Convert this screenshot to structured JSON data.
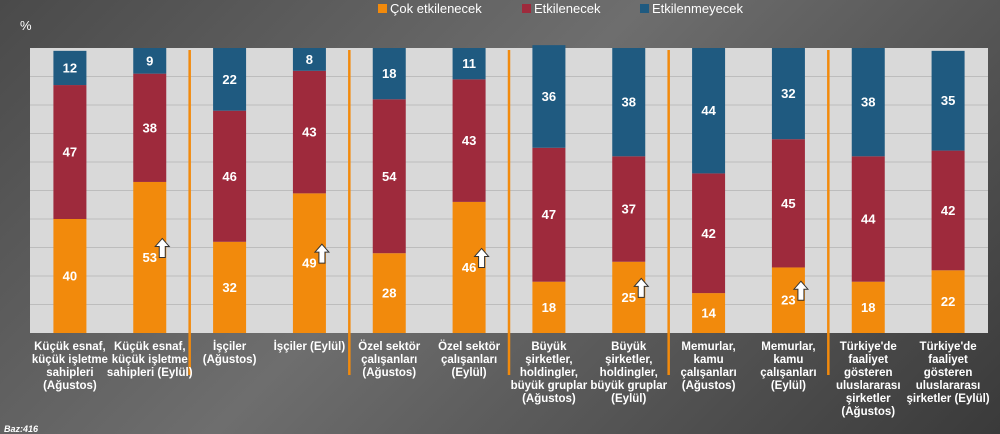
{
  "chart_data": {
    "type": "bar",
    "stacked": true,
    "unit_label": "%",
    "ylim": [
      0,
      100
    ],
    "grid": true,
    "legend_position": "top",
    "footnote": "Baz:416",
    "categories": [
      [
        "Küçük esnaf,",
        "küçük işletme",
        "sahipleri",
        "(Ağustos)"
      ],
      [
        "Küçük esnaf,",
        "küçük işletme",
        "sahipleri (Eylül)"
      ],
      [
        "İşçiler",
        "(Ağustos)"
      ],
      [
        "İşçiler (Eylül)"
      ],
      [
        "Özel sektör",
        "çalışanları",
        "(Ağustos)"
      ],
      [
        "Özel sektör",
        "çalışanları",
        "(Eylül)"
      ],
      [
        "Büyük",
        "şirketler,",
        "holdingler,",
        "büyük gruplar",
        "(Ağustos)"
      ],
      [
        "Büyük",
        "şirketler,",
        "holdingler,",
        "büyük gruplar",
        "(Eylül)"
      ],
      [
        "Memurlar,",
        "kamu",
        "çalışanları",
        "(Ağustos)"
      ],
      [
        "Memurlar,",
        "kamu",
        "çalışanları",
        "(Eylül)"
      ],
      [
        "Türkiye'de",
        "faaliyet",
        "gösteren",
        "uluslararası",
        "şirketler",
        "(Ağustos)"
      ],
      [
        "Türkiye'de",
        "faaliyet",
        "gösteren",
        "uluslararası",
        "şirketler (Eylül)"
      ]
    ],
    "series": [
      {
        "name": "Çok etkilenecek",
        "color": "#F28A0C",
        "values": [
          40,
          53,
          32,
          49,
          28,
          46,
          18,
          25,
          14,
          23,
          18,
          22
        ]
      },
      {
        "name": "Etkilenecek",
        "color": "#9E2A3C",
        "values": [
          47,
          38,
          46,
          43,
          54,
          43,
          47,
          37,
          42,
          45,
          44,
          42
        ]
      },
      {
        "name": "Etkilenmeyecek",
        "color": "#1F5A80",
        "values": [
          12,
          9,
          22,
          8,
          18,
          11,
          36,
          38,
          44,
          32,
          38,
          35
        ]
      }
    ],
    "up_arrow_on": [
      1,
      3,
      5,
      7,
      9
    ],
    "group_separators_after": [
      1,
      3,
      5,
      7,
      9
    ]
  }
}
